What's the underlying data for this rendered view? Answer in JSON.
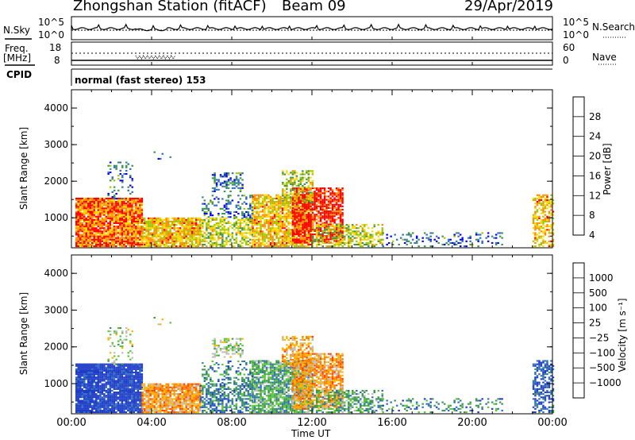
{
  "header": {
    "station": "Zhongshan Station (fitACF)",
    "beam": "Beam 09",
    "date": "29/Apr/2019"
  },
  "nsky_panel": {
    "left_label": "N.Sky",
    "left_ticks": [
      "10^5",
      "10^0"
    ],
    "right_label": "N.Search",
    "right_ticks": [
      "10^5",
      "10^0"
    ]
  },
  "freq_panel": {
    "left_label_1": "Freq.",
    "left_label_2": "[MHz]",
    "left_ticks": [
      "18",
      "8"
    ],
    "right_label": "Nave",
    "right_ticks": [
      "60",
      "0"
    ]
  },
  "cpid": {
    "label": "CPID",
    "value": "normal (fast stereo) 153"
  },
  "chart_data": [
    {
      "type": "heatmap",
      "name": "power",
      "ylabel": "Slant Range [km]",
      "xlabel": "Time UT",
      "ylim": [
        180,
        4500
      ],
      "yticks": [
        "4000",
        "3000",
        "2000",
        "1000"
      ],
      "xticks": [
        "00:00",
        "04:00",
        "08:00",
        "12:00",
        "16:00",
        "20:00",
        "00:00"
      ],
      "colorbar": {
        "label": "Power [dB]",
        "ticks": [
          "28",
          "24",
          "20",
          "16",
          "12",
          "8",
          "4"
        ],
        "colors": [
          "#ff0000",
          "#ff8c00",
          "#ffd700",
          "#a0c800",
          "#3c9650",
          "#2d6ebe",
          "#0000ff"
        ]
      }
    },
    {
      "type": "heatmap",
      "name": "velocity",
      "ylabel": "Slant Range [km]",
      "xlabel": "Time UT",
      "ylim": [
        180,
        4500
      ],
      "yticks": [
        "4000",
        "3000",
        "2000",
        "1000"
      ],
      "xticks": [
        "00:00",
        "04:00",
        "08:00",
        "12:00",
        "16:00",
        "20:00",
        "00:00"
      ],
      "colorbar": {
        "label": "Velocity [m s⁻¹]",
        "ticks": [
          "1000",
          "500",
          "100",
          "25",
          "−25",
          "−100",
          "−500",
          "−1000"
        ],
        "colors": [
          "#1e3cc8",
          "#2d6ebe",
          "#3c9650",
          "#55c830",
          "#bebebe",
          "#ffb400",
          "#ff8200",
          "#ff4600",
          "#ff0000"
        ]
      }
    }
  ]
}
